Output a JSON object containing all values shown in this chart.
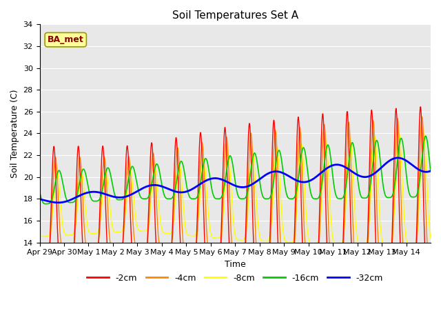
{
  "title": "Soil Temperatures Set A",
  "xlabel": "Time",
  "ylabel": "Soil Temperature (C)",
  "ylim": [
    14,
    34
  ],
  "yticks": [
    14,
    16,
    18,
    20,
    22,
    24,
    26,
    28,
    30,
    32,
    34
  ],
  "annotation": "BA_met",
  "bg_color": "#e8e8e8",
  "line_colors": {
    "-2cm": "#ff0000",
    "-4cm": "#ff8800",
    "-8cm": "#ffff00",
    "-16cm": "#00cc00",
    "-32cm": "#0000ff"
  },
  "days": [
    "Apr 29",
    "Apr 30",
    "May 1",
    "May 2",
    "May 3",
    "May 4",
    "May 5",
    "May 6",
    "May 7",
    "May 8",
    "May 9",
    "May 10",
    "May 11",
    "May 12",
    "May 13",
    "May 14"
  ],
  "n_days": 16
}
